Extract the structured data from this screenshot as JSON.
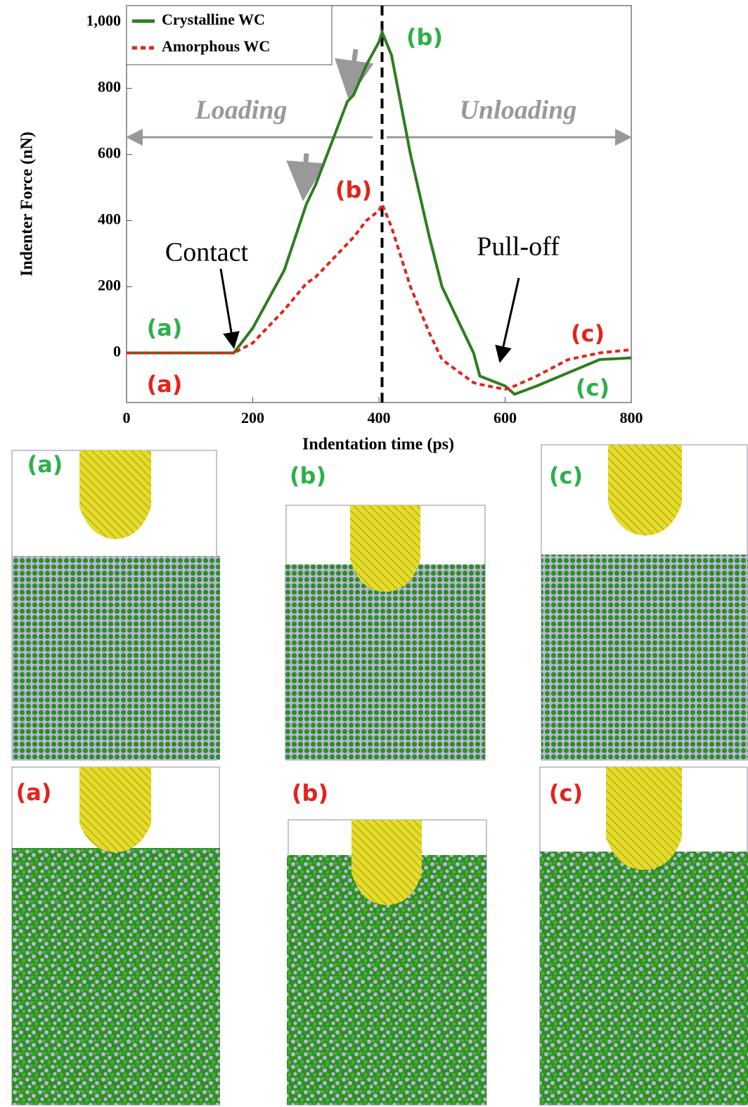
{
  "chart_data": {
    "type": "line",
    "x_label": "Indentation time (ps)",
    "y_label": "Indenter Force (nN)",
    "x": [
      0,
      170,
      200,
      250,
      285,
      300,
      350,
      360,
      380,
      400,
      405,
      420,
      450,
      480,
      500,
      550,
      560,
      600,
      615,
      650,
      700,
      750,
      800
    ],
    "series": [
      {
        "name": "Crystalline WC",
        "color": "#2e7d1f",
        "dash": false,
        "values": [
          0,
          0,
          75,
          250,
          450,
          510,
          760,
          780,
          870,
          940,
          970,
          900,
          600,
          350,
          200,
          0,
          -70,
          -100,
          -125,
          -100,
          -60,
          -20,
          -15
        ]
      },
      {
        "name": "Amorphous WC",
        "color": "#e3231b",
        "dash": true,
        "values": [
          0,
          0,
          30,
          130,
          210,
          230,
          330,
          350,
          400,
          430,
          450,
          380,
          200,
          60,
          -20,
          -90,
          -95,
          -110,
          -100,
          -70,
          -20,
          0,
          10
        ]
      }
    ],
    "xlim": [
      0,
      800
    ],
    "xticks": [
      0,
      200,
      400,
      600,
      800
    ],
    "ylim": [
      -150,
      1050
    ],
    "yticks": [
      0,
      200,
      400,
      600,
      800,
      {
        "value": 1000,
        "label": "1,000"
      }
    ],
    "vline_x": 405,
    "legend": "upper left",
    "annotations": [
      "Loading",
      "Unloading",
      "Contact",
      "Pull-off",
      "(a)",
      "(b)",
      "(c)",
      "(a)",
      "(b)",
      "(c)"
    ]
  },
  "panels": {
    "crystalline": [
      "(a)",
      "(b)",
      "(c)"
    ],
    "amorphous": [
      "(a)",
      "(b)",
      "(c)"
    ]
  }
}
